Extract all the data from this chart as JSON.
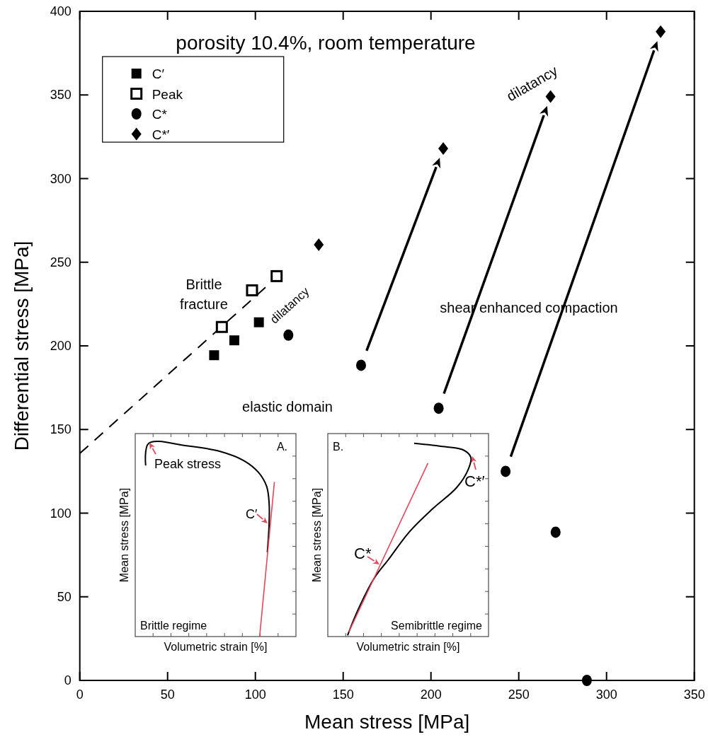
{
  "chart_data": [
    {
      "type": "scatter",
      "title": "porosity 10.4%, room temperature",
      "xlabel": "Mean stress [MPa]",
      "ylabel": "Differential stress [MPa]",
      "xlim": [
        0,
        350
      ],
      "ylim": [
        0,
        400
      ],
      "xticks": [
        0,
        50,
        100,
        150,
        200,
        250,
        300,
        350
      ],
      "yticks": [
        0,
        50,
        100,
        150,
        200,
        250,
        300,
        350,
        400
      ],
      "legend": "top left",
      "annotations": [
        "Brittle fracture",
        "dilatancy",
        "elastic domain",
        "shear enhanced compaction",
        "dilatancy"
      ],
      "series": [
        {
          "name": "C′",
          "color": "#000000",
          "marker": "square",
          "x": [
            76.5,
            88,
            102
          ],
          "values": [
            194.4,
            203.3,
            214.1
          ]
        },
        {
          "name": "Peak",
          "color": "#000000",
          "marker": "square-open",
          "x": [
            80.9,
            98.1,
            112.1
          ],
          "values": [
            211.3,
            233.2,
            241.7
          ]
        },
        {
          "name": "C*",
          "color": "#000000",
          "marker": "circle",
          "x": [
            118.8,
            160.2,
            204.4,
            242.5,
            271,
            288.8
          ],
          "values": [
            206.4,
            188.4,
            162.7,
            125,
            88.6,
            0
          ]
        },
        {
          "name": "C*′",
          "color": "#000000",
          "marker": "diamond",
          "x": [
            136.1,
            207,
            268.1,
            330.8
          ],
          "values": [
            260.5,
            318,
            349,
            387.8
          ]
        },
        {
          "type": "line",
          "color": "#000000",
          "marker": "none",
          "line_style": "dashed",
          "x": [
            0,
            109
          ],
          "values": [
            135.7,
            238
          ]
        }
      ]
    },
    {
      "type": "other",
      "xlabel": "Volumetric strain [%]",
      "ylabel": "Mean stress [MPa]",
      "annotations": [
        "A.",
        "Peak stress",
        "C′",
        "Brittle regime"
      ]
    },
    {
      "type": "other",
      "xlabel": "Volumetric strain [%]",
      "ylabel": "Mean stress [MPa]",
      "annotations": [
        "B.",
        "C*",
        "C*′",
        "Semibrittle regime"
      ]
    }
  ]
}
